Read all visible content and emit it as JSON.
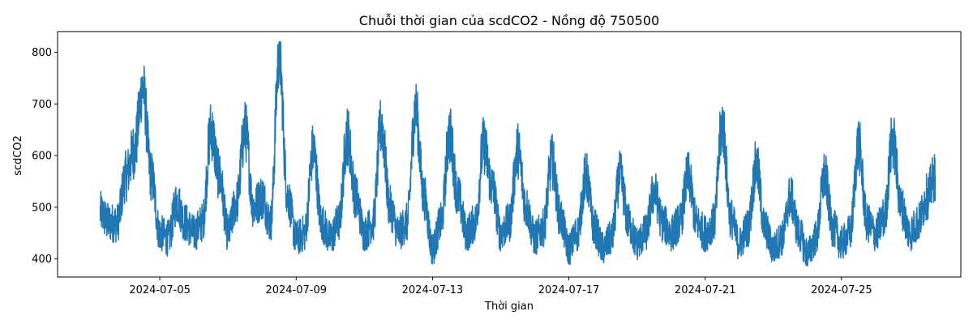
{
  "chart_data": {
    "type": "line",
    "title": "Chuỗi thời gian của scdCO2 - Nồng độ 750500",
    "xlabel": "Thời gian",
    "ylabel": "scdCO2",
    "x_start": "2024-07-03T06:00",
    "x_end": "2024-07-27T18:00",
    "xlim": [
      "2024-07-02T00:00",
      "2024-07-28T12:00"
    ],
    "ylim": [
      365,
      840
    ],
    "x_ticks": [
      "2024-07-05",
      "2024-07-09",
      "2024-07-13",
      "2024-07-17",
      "2024-07-21",
      "2024-07-25"
    ],
    "y_ticks": [
      400,
      500,
      600,
      700,
      800
    ],
    "grid": false,
    "legend": "none",
    "series": [
      {
        "color": "#1f77b4",
        "x": [
          "2024-07-03T06:00",
          "2024-07-03T12:00",
          "2024-07-03T18:00",
          "2024-07-04T00:00",
          "2024-07-04T06:00",
          "2024-07-04T12:00",
          "2024-07-04T18:00",
          "2024-07-05T00:00",
          "2024-07-05T06:00",
          "2024-07-05T12:00",
          "2024-07-05T18:00",
          "2024-07-06T00:00",
          "2024-07-06T06:00",
          "2024-07-06T12:00",
          "2024-07-06T18:00",
          "2024-07-07T00:00",
          "2024-07-07T06:00",
          "2024-07-07T12:00",
          "2024-07-07T18:00",
          "2024-07-08T00:00",
          "2024-07-08T06:00",
          "2024-07-08T12:00",
          "2024-07-08T18:00",
          "2024-07-09T00:00",
          "2024-07-09T06:00",
          "2024-07-09T12:00",
          "2024-07-09T18:00",
          "2024-07-10T00:00",
          "2024-07-10T06:00",
          "2024-07-10T12:00",
          "2024-07-10T18:00",
          "2024-07-11T00:00",
          "2024-07-11T06:00",
          "2024-07-11T12:00",
          "2024-07-11T18:00",
          "2024-07-12T00:00",
          "2024-07-12T06:00",
          "2024-07-12T12:00",
          "2024-07-12T18:00",
          "2024-07-13T00:00",
          "2024-07-13T06:00",
          "2024-07-13T12:00",
          "2024-07-13T18:00",
          "2024-07-14T00:00",
          "2024-07-14T06:00",
          "2024-07-14T12:00",
          "2024-07-14T18:00",
          "2024-07-15T00:00",
          "2024-07-15T06:00",
          "2024-07-15T12:00",
          "2024-07-15T18:00",
          "2024-07-16T00:00",
          "2024-07-16T06:00",
          "2024-07-16T12:00",
          "2024-07-16T18:00",
          "2024-07-17T00:00",
          "2024-07-17T06:00",
          "2024-07-17T12:00",
          "2024-07-17T18:00",
          "2024-07-18T00:00",
          "2024-07-18T06:00",
          "2024-07-18T12:00",
          "2024-07-18T18:00",
          "2024-07-19T00:00",
          "2024-07-19T06:00",
          "2024-07-19T12:00",
          "2024-07-19T18:00",
          "2024-07-20T00:00",
          "2024-07-20T06:00",
          "2024-07-20T12:00",
          "2024-07-20T18:00",
          "2024-07-21T00:00",
          "2024-07-21T06:00",
          "2024-07-21T12:00",
          "2024-07-21T18:00",
          "2024-07-22T00:00",
          "2024-07-22T06:00",
          "2024-07-22T12:00",
          "2024-07-22T18:00",
          "2024-07-23T00:00",
          "2024-07-23T06:00",
          "2024-07-23T12:00",
          "2024-07-23T18:00",
          "2024-07-24T00:00",
          "2024-07-24T06:00",
          "2024-07-24T12:00",
          "2024-07-24T18:00",
          "2024-07-25T00:00",
          "2024-07-25T06:00",
          "2024-07-25T12:00",
          "2024-07-25T18:00",
          "2024-07-26T00:00",
          "2024-07-26T06:00",
          "2024-07-26T12:00",
          "2024-07-26T18:00",
          "2024-07-27T00:00",
          "2024-07-27T06:00",
          "2024-07-27T12:00",
          "2024-07-27T18:00"
        ],
        "y": [
          490,
          470,
          470,
          560,
          610,
          730,
          560,
          450,
          440,
          510,
          470,
          450,
          470,
          650,
          560,
          450,
          510,
          650,
          500,
          520,
          470,
          790,
          520,
          440,
          450,
          610,
          470,
          440,
          470,
          640,
          520,
          450,
          470,
          660,
          500,
          450,
          470,
          690,
          520,
          420,
          470,
          640,
          520,
          450,
          470,
          620,
          540,
          450,
          470,
          610,
          500,
          440,
          460,
          590,
          480,
          420,
          450,
          560,
          460,
          420,
          440,
          560,
          470,
          430,
          450,
          530,
          470,
          450,
          470,
          560,
          470,
          450,
          470,
          660,
          480,
          430,
          460,
          580,
          460,
          420,
          440,
          520,
          450,
          410,
          440,
          560,
          460,
          430,
          450,
          620,
          470,
          450,
          480,
          630,
          500,
          450,
          470,
          520,
          560
        ],
        "noise_band": 60,
        "points_per_segment": 40
      }
    ]
  }
}
